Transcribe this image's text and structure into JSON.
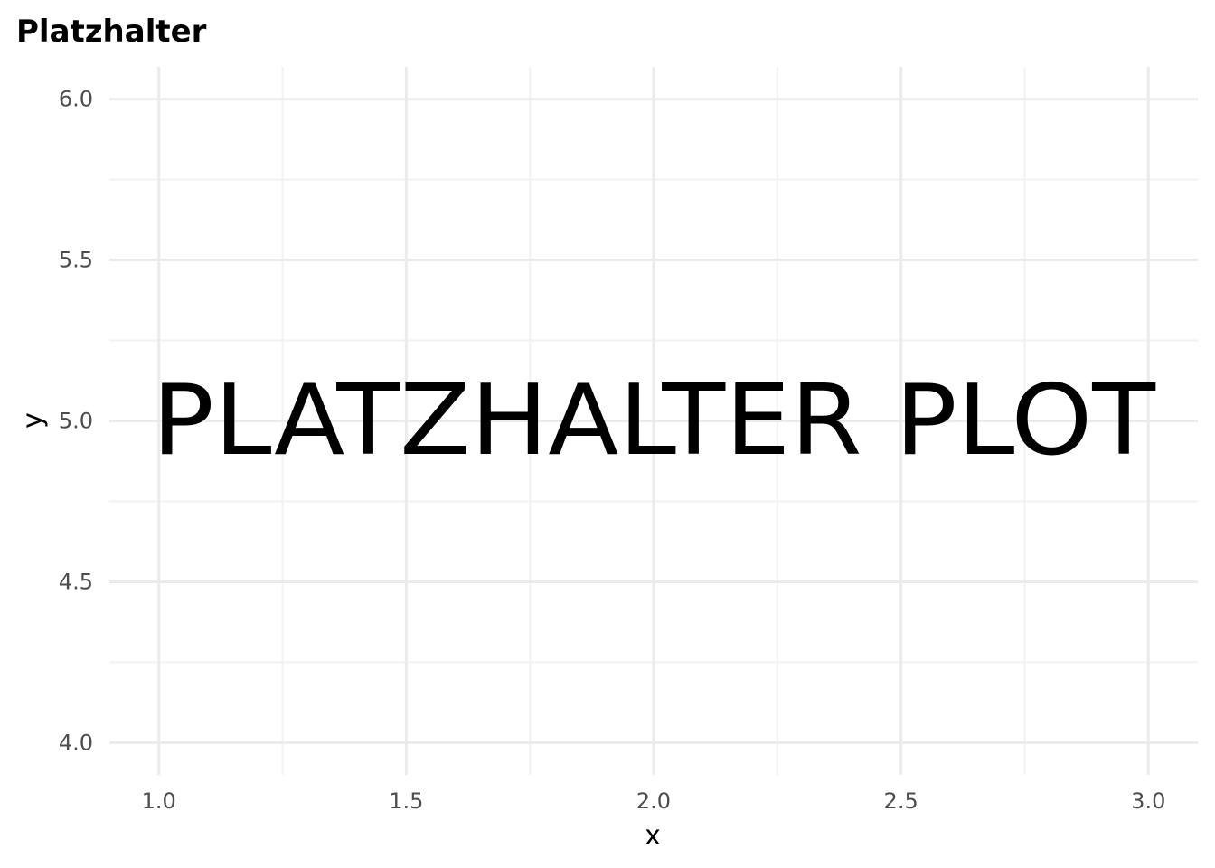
{
  "chart_data": {
    "type": "scatter",
    "title": "Platzhalter",
    "xlabel": "x",
    "ylabel": "y",
    "xlim": [
      0.9,
      3.1
    ],
    "ylim": [
      3.9,
      6.1
    ],
    "x_ticks": [
      "1.0",
      "1.5",
      "2.0",
      "2.5",
      "3.0"
    ],
    "y_ticks": [
      "4.0",
      "4.5",
      "5.0",
      "5.5",
      "6.0"
    ],
    "x_tick_values": [
      1.0,
      1.5,
      2.0,
      2.5,
      3.0
    ],
    "y_tick_values": [
      4.0,
      4.5,
      5.0,
      5.5,
      6.0
    ],
    "x_minor_values": [
      1.25,
      1.75,
      2.25,
      2.75
    ],
    "y_minor_values": [
      4.25,
      4.75,
      5.25,
      5.75
    ],
    "grid": true,
    "legend": "none",
    "points": [],
    "annotation": {
      "text": "PLATZHALTER PLOT",
      "x": 2.0,
      "y": 5.0
    },
    "colors": {
      "grid_major": "#ebebeb",
      "grid_minor": "#f2f2f2",
      "text": "#000000",
      "tick_text": "#4d4d4d"
    }
  }
}
